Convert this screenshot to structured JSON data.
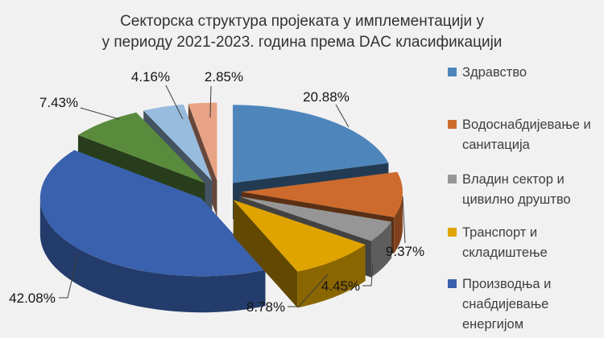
{
  "title": {
    "line1": "Секторска структура пројеката у имплементацији у",
    "line2": "у периоду 2021-2023. година према DAC класификацији"
  },
  "chart_data": {
    "type": "pie",
    "style": "3d-exploded",
    "title": "Секторска структура пројеката у имплементацији у у периоду 2021-2023. година према DAC класификацији",
    "legend_position": "right",
    "background_color": "#f1f1f1",
    "slices": [
      {
        "label": "Здравство",
        "value": 20.88,
        "pct_label": "20.88%",
        "color": "#4e86bc"
      },
      {
        "label": "Водоснабдијевање и санитација",
        "value": 9.37,
        "pct_label": "9.37%",
        "color": "#cd6b2e"
      },
      {
        "label": "Владин сектор и цивилно друштво",
        "value": 4.45,
        "pct_label": "4.45%",
        "color": "#969696"
      },
      {
        "label": "Транспорт и складиштење",
        "value": 8.78,
        "pct_label": "8.78%",
        "color": "#dfa400"
      },
      {
        "label": "Производња и снабдијевање енергијом",
        "value": 42.08,
        "pct_label": "42.08%",
        "color": "#3a61ad"
      },
      {
        "label": "",
        "value": 7.43,
        "pct_label": "7.43%",
        "color": "#5a8b3d"
      },
      {
        "label": "",
        "value": 4.16,
        "pct_label": "4.16%",
        "color": "#98bcde"
      },
      {
        "label": "",
        "value": 2.85,
        "pct_label": "2.85%",
        "color": "#e8a284"
      }
    ],
    "legend": [
      {
        "label": "Здравство",
        "color": "#4e86bc"
      },
      {
        "label": "Водоснабдијевање и санитација",
        "color": "#cd6b2e"
      },
      {
        "label": "Владин сектор и цивилно друштво",
        "color": "#969696"
      },
      {
        "label": "Транспорт и складиштење",
        "color": "#dfa400"
      },
      {
        "label": "Производња и снабдијевање енергијом",
        "color": "#3a61ad"
      }
    ]
  }
}
